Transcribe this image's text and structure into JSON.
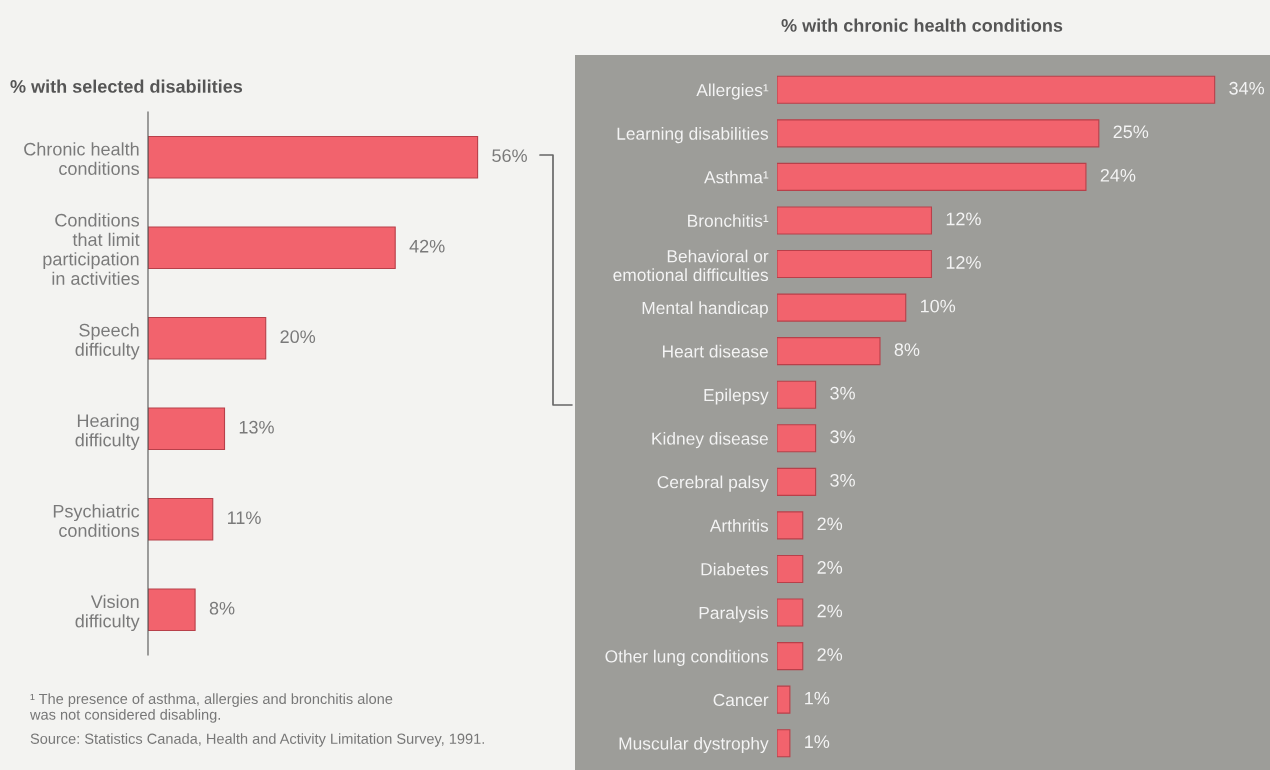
{
  "chart_data": [
    {
      "type": "bar",
      "orientation": "horizontal",
      "title": "% with selected disabilities",
      "categories": [
        "Chronic health\nconditions",
        "Conditions\nthat limit\nparticipation\nin activities",
        "Speech\ndifficulty",
        "Hearing\ndifficulty",
        "Psychiatric\nconditions",
        "Vision\ndifficulty"
      ],
      "values": [
        56,
        42,
        20,
        13,
        11,
        8
      ],
      "color": "#f2636d",
      "data_labels": true,
      "value_labels": [
        "56%",
        "42%",
        "20%",
        "13%",
        "11%",
        "8%"
      ],
      "annotations": [
        "¹ The presence of asthma, allergies and bronchitis alone\nwas not considered disabling.",
        "Source: Statistics Canada, Health and Activity Limitation Survey, 1991."
      ]
    },
    {
      "type": "bar",
      "orientation": "horizontal",
      "title": "% with chronic health conditions",
      "categories": [
        "Allergies¹",
        "Learning disabilities",
        "Asthma¹",
        "Bronchitis¹",
        "Behavioral or\nemotional difficulties",
        "Mental handicap",
        "Heart disease",
        "Epilepsy",
        "Kidney disease",
        "Cerebral palsy",
        "Arthritis",
        "Diabetes",
        "Paralysis",
        "Other lung conditions",
        "Cancer",
        "Muscular dystrophy"
      ],
      "values": [
        34,
        25,
        24,
        12,
        12,
        10,
        8,
        3,
        3,
        3,
        2,
        2,
        2,
        2,
        1,
        1
      ],
      "color": "#f2636d",
      "data_labels": true,
      "value_labels": [
        "34%",
        "25%",
        "24%",
        "12%",
        "12%",
        "10%",
        "8%",
        "3%",
        "3%",
        "3%",
        "2%",
        "2%",
        "2%",
        "2%",
        "1%",
        "1%"
      ]
    }
  ]
}
